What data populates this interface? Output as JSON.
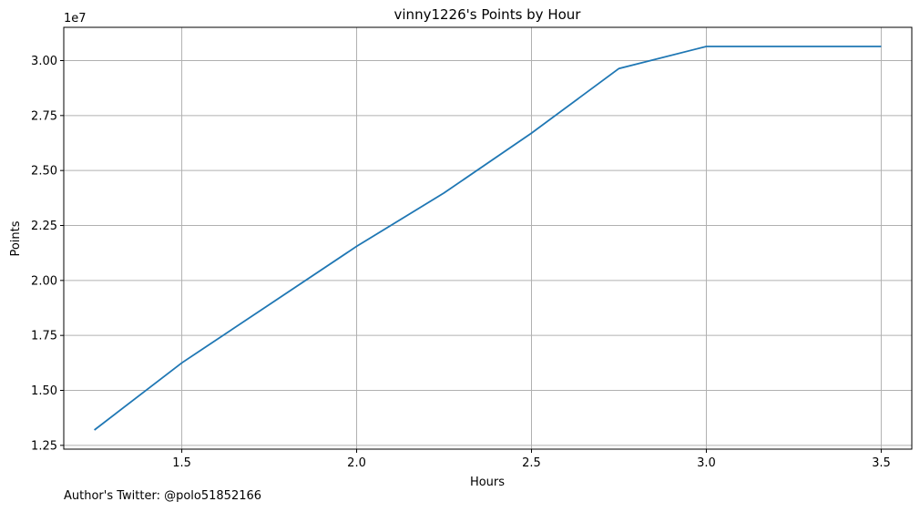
{
  "chart_data": {
    "type": "line",
    "title": "vinny1226's Points by Hour",
    "xlabel": "Hours",
    "ylabel": "Points",
    "y_offset_label": "1e7",
    "x_ticks": [
      1.5,
      2.0,
      2.5,
      3.0,
      3.5
    ],
    "x_tick_labels": [
      "1.5",
      "2.0",
      "2.5",
      "3.0",
      "3.5"
    ],
    "y_ticks": [
      12500000,
      15000000,
      17500000,
      20000000,
      22500000,
      25000000,
      27500000,
      30000000
    ],
    "y_tick_labels": [
      "1.25",
      "1.50",
      "1.75",
      "2.00",
      "2.25",
      "2.50",
      "2.75",
      "3.00"
    ],
    "grid": true,
    "series": [
      {
        "x": [
          1.25,
          1.5,
          1.75,
          2.0,
          2.25,
          2.5,
          2.75,
          3.0,
          3.25,
          3.5
        ],
        "values": [
          13200000,
          16250000,
          18900000,
          21550000,
          23980000,
          26700000,
          29640000,
          30640000,
          30640000,
          30640000
        ],
        "color": "#1f77b4"
      }
    ]
  },
  "footer": {
    "text": "Author's Twitter: @polo51852166"
  }
}
